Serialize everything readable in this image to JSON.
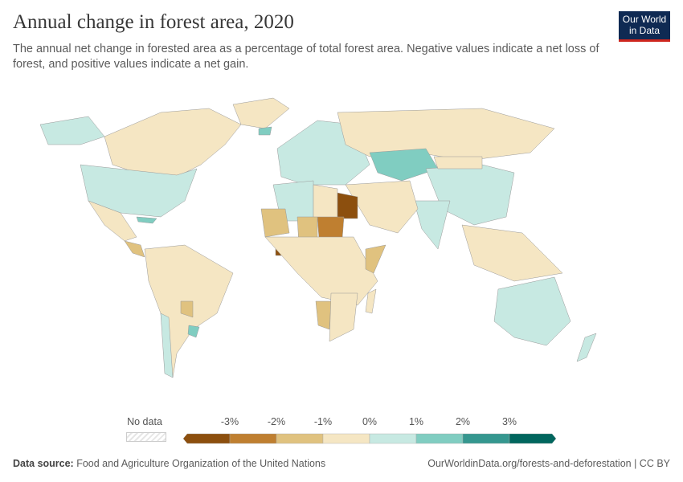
{
  "header": {
    "title": "Annual change in forest area, 2020",
    "subtitle": "The annual net change in forested area as a percentage of total forest area. Negative values indicate a net loss of forest, and positive values indicate a net gain.",
    "logo_line1": "Our World",
    "logo_line2": "in Data"
  },
  "legend": {
    "no_data_label": "No data",
    "ticks": [
      "-3%",
      "-2%",
      "-1%",
      "0%",
      "1%",
      "2%",
      "3%"
    ],
    "bins": [
      {
        "range": "< -3%",
        "color": "#8c4f0e"
      },
      {
        "range": "-3% to -2%",
        "color": "#bf7f30"
      },
      {
        "range": "-2% to -1%",
        "color": "#e0c27f"
      },
      {
        "range": "-1% to 0%",
        "color": "#f5e6c3"
      },
      {
        "range": "0% to 1%",
        "color": "#c7e9e2"
      },
      {
        "range": "1% to 2%",
        "color": "#80cdc1"
      },
      {
        "range": "2% to 3%",
        "color": "#35978f"
      },
      {
        "range": "> 3%",
        "color": "#01665e"
      }
    ]
  },
  "regions": [
    {
      "name": "Canada",
      "bin": 3
    },
    {
      "name": "United States",
      "bin": 4
    },
    {
      "name": "Alaska",
      "bin": 4
    },
    {
      "name": "Mexico",
      "bin": 3
    },
    {
      "name": "Central America",
      "bin": 2
    },
    {
      "name": "Cuba",
      "bin": 5
    },
    {
      "name": "South America",
      "bin": 3
    },
    {
      "name": "Paraguay",
      "bin": 2
    },
    {
      "name": "Uruguay",
      "bin": 5
    },
    {
      "name": "Chile",
      "bin": 4
    },
    {
      "name": "Europe",
      "bin": 4
    },
    {
      "name": "Russia",
      "bin": 3
    },
    {
      "name": "Kazakhstan",
      "bin": 5
    },
    {
      "name": "China",
      "bin": 4
    },
    {
      "name": "Mongolia",
      "bin": 3
    },
    {
      "name": "India",
      "bin": 4
    },
    {
      "name": "Middle East",
      "bin": 3
    },
    {
      "name": "Algeria",
      "bin": 4
    },
    {
      "name": "Libya",
      "bin": 3
    },
    {
      "name": "Egypt",
      "bin": 0
    },
    {
      "name": "Sudan",
      "bin": 1
    },
    {
      "name": "Chad",
      "bin": 2
    },
    {
      "name": "Mali",
      "bin": 2
    },
    {
      "name": "Ivory Coast",
      "bin": 0
    },
    {
      "name": "Central Africa",
      "bin": 3
    },
    {
      "name": "Namibia",
      "bin": 2
    },
    {
      "name": "Southern Africa",
      "bin": 3
    },
    {
      "name": "Somalia",
      "bin": 2
    },
    {
      "name": "Madagascar",
      "bin": 3
    },
    {
      "name": "Cambodia",
      "bin": 1
    },
    {
      "name": "Southeast Asia",
      "bin": 3
    },
    {
      "name": "Australia",
      "bin": 4
    },
    {
      "name": "New Zealand",
      "bin": 4
    },
    {
      "name": "Greenland",
      "bin": 3
    },
    {
      "name": "Iceland",
      "bin": 5
    }
  ],
  "footer": {
    "source_label": "Data source:",
    "source": "Food and Agriculture Organization of the United Nations",
    "url": "OurWorldinData.org/forests-and-deforestation | CC BY"
  }
}
